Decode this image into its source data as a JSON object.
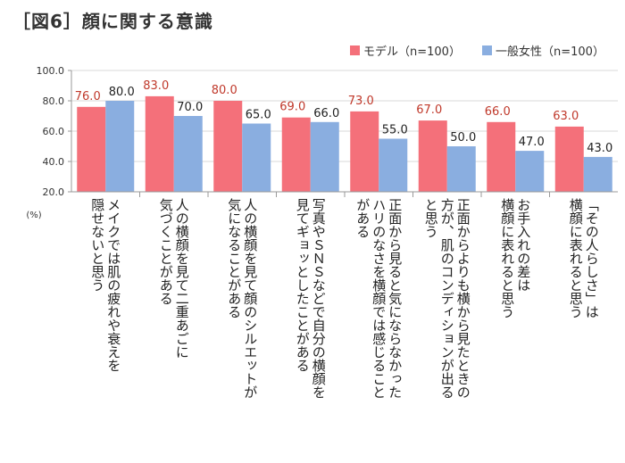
{
  "title": "［図6］顔に関する意識",
  "colors": {
    "model": "#f4707a",
    "general": "#8aaee0",
    "model_label": "#c0392b",
    "axis": "#999999",
    "grid": "#d8d8d8"
  },
  "chart_data": {
    "type": "bar",
    "unit": "(%)",
    "ylim": [
      20,
      100
    ],
    "yticks": [
      "20.0",
      "40.0",
      "60.0",
      "80.0",
      "100.0"
    ],
    "grid": true,
    "legend_position": "top-right",
    "categories": [
      [
        "メイクでは肌の疲れや衰えを",
        "隠せないと思う"
      ],
      [
        "人の横顔を見て二重あごに",
        "気づくことがある"
      ],
      [
        "人の横顔を見て顔のシルエットが",
        "気になることがある"
      ],
      [
        "写真やＳＮＳなどで自分の横顔を",
        "見てギョッとしたことがある"
      ],
      [
        "正面から見ると気にならなかった",
        "ハリのなさを横顔では感じること",
        "がある"
      ],
      [
        "正面からよりも横から見たときの",
        "方が、肌のコンディションが出る",
        "と思う"
      ],
      [
        "お手入れの差は",
        "横顔に表れると思う"
      ],
      [
        "「その人らしさ」は",
        "横顔に表れると思う"
      ]
    ],
    "series": [
      {
        "name": "モデル（n=100）",
        "values": [
          76.0,
          83.0,
          80.0,
          69.0,
          73.0,
          67.0,
          66.0,
          63.0
        ],
        "labels": [
          "76.0",
          "83.0",
          "80.0",
          "69.0",
          "73.0",
          "67.0",
          "66.0",
          "63.0"
        ]
      },
      {
        "name": "一般女性（n=100）",
        "values": [
          80.0,
          70.0,
          65.0,
          66.0,
          55.0,
          50.0,
          47.0,
          43.0
        ],
        "labels": [
          "80.0",
          "70.0",
          "65.0",
          "66.0",
          "55.0",
          "50.0",
          "47.0",
          "43.0"
        ]
      }
    ]
  }
}
